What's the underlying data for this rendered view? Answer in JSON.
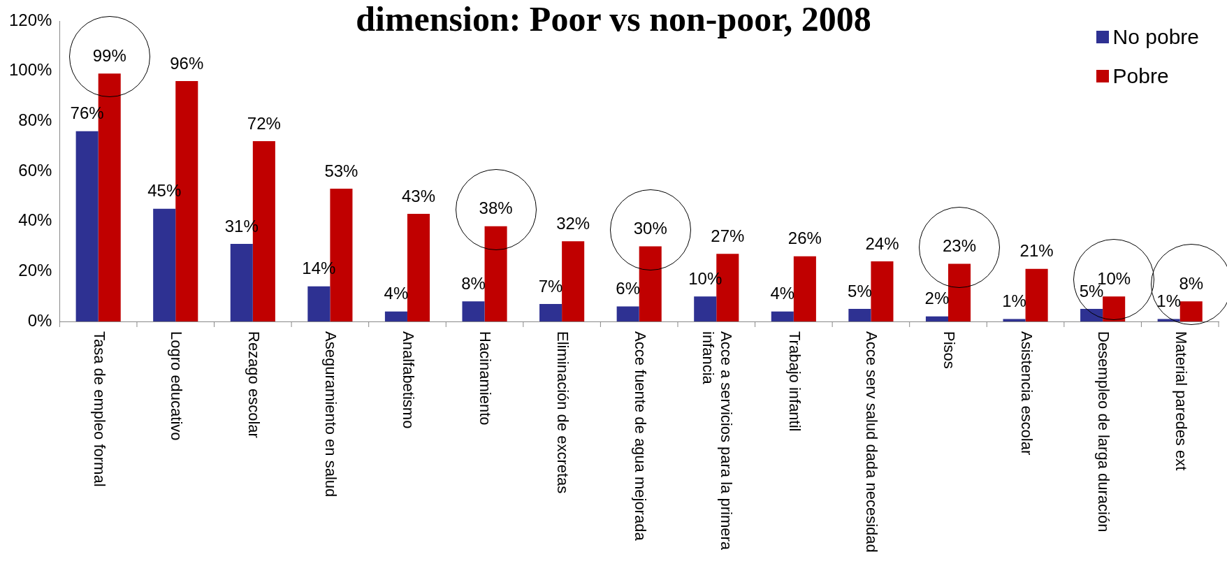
{
  "chart_data": {
    "type": "bar",
    "title": "dimension: Poor vs non-poor, 2008",
    "categories": [
      "Tasa de empleo formal",
      "Logro educativo",
      "Rezago escolar",
      "Aseguramiento en salud",
      "Analfabetismo",
      "Hacinamiento",
      "Eliminación de excretas",
      "Acce fuente de agua mejorada",
      "Acce a servicios para la primera infancia",
      "Trabajo infantil",
      "Acce serv salud dada necesidad",
      "Pisos",
      "Asistencia escolar",
      "Desempleo de larga duración",
      "Material paredes ext"
    ],
    "series": [
      {
        "name": "No pobre",
        "color": "#2e3192",
        "values": [
          76,
          45,
          31,
          14,
          4,
          8,
          7,
          6,
          10,
          4,
          5,
          2,
          1,
          5,
          1
        ],
        "value_labels": [
          "76%",
          "45%",
          "31%",
          "14%",
          "4%",
          "8%",
          "7%",
          "6%",
          "10%",
          "4%",
          "5%",
          "2%",
          "1%",
          "5%",
          "1%"
        ]
      },
      {
        "name": "Pobre",
        "color": "#c00000",
        "values": [
          99,
          96,
          72,
          53,
          43,
          38,
          32,
          30,
          27,
          26,
          24,
          23,
          21,
          10,
          8
        ],
        "value_labels": [
          "99%",
          "96%",
          "72%",
          "53%",
          "43%",
          "38%",
          "32%",
          "30%",
          "27%",
          "26%",
          "24%",
          "23%",
          "21%",
          "10%",
          "8%"
        ]
      }
    ],
    "ylim": [
      0,
      120
    ],
    "yticks": [
      {
        "value": 0,
        "label": "0%"
      },
      {
        "value": 20,
        "label": "20%"
      },
      {
        "value": 40,
        "label": "40%"
      },
      {
        "value": 60,
        "label": "60%"
      },
      {
        "value": 80,
        "label": "80%"
      },
      {
        "value": 100,
        "label": "100%"
      },
      {
        "value": 120,
        "label": "120%"
      }
    ],
    "grid": false,
    "legend": "top right"
  }
}
